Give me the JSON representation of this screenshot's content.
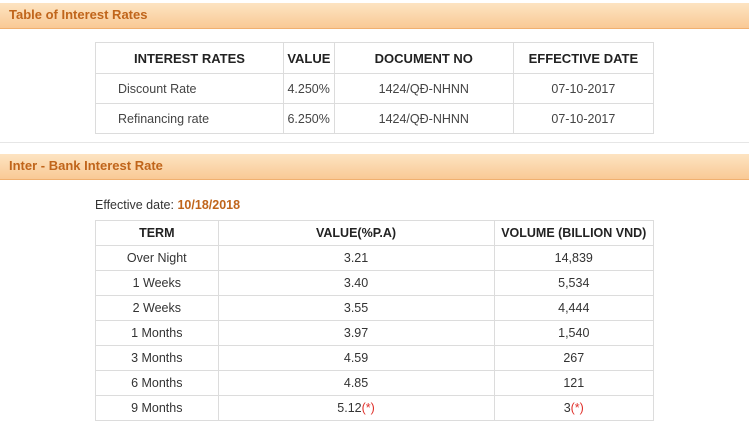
{
  "sections": {
    "interest_rates_title": "Table of Interest Rates",
    "interbank_title": "Inter - Bank Interest Rate"
  },
  "rates_table": {
    "headers": [
      "INTEREST RATES",
      "VALUE",
      "DOCUMENT NO",
      "EFFECTIVE DATE"
    ],
    "rows": [
      {
        "name": "Discount Rate",
        "value": "4.250%",
        "doc": "1424/QĐ-NHNN",
        "date": "07-10-2017"
      },
      {
        "name": "Refinancing rate",
        "value": "6.250%",
        "doc": "1424/QĐ-NHNN",
        "date": "07-10-2017"
      }
    ]
  },
  "interbank": {
    "effective_label": "Effective date:",
    "effective_date": "10/18/2018",
    "headers": [
      "TERM",
      "VALUE(%P.A)",
      "VOLUME (BILLION VND)"
    ],
    "rows": [
      {
        "term": "Over Night",
        "value": "3.21",
        "value_mark": "",
        "volume": "14,839",
        "volume_mark": ""
      },
      {
        "term": "1 Weeks",
        "value": "3.40",
        "value_mark": "",
        "volume": "5,534",
        "volume_mark": ""
      },
      {
        "term": "2 Weeks",
        "value": "3.55",
        "value_mark": "",
        "volume": "4,444",
        "volume_mark": ""
      },
      {
        "term": "1 Months",
        "value": "3.97",
        "value_mark": "",
        "volume": "1,540",
        "volume_mark": ""
      },
      {
        "term": "3 Months",
        "value": "4.59",
        "value_mark": "",
        "volume": "267",
        "volume_mark": ""
      },
      {
        "term": "6 Months",
        "value": "4.85",
        "value_mark": "",
        "volume": "121",
        "volume_mark": ""
      },
      {
        "term": "9 Months",
        "value": "5.12",
        "value_mark": "(*)",
        "volume": "3",
        "volume_mark": "(*)"
      }
    ]
  },
  "colors": {
    "header_text": "#c0651b",
    "header_bg": "#f9c995",
    "mark": "#e0312b"
  }
}
